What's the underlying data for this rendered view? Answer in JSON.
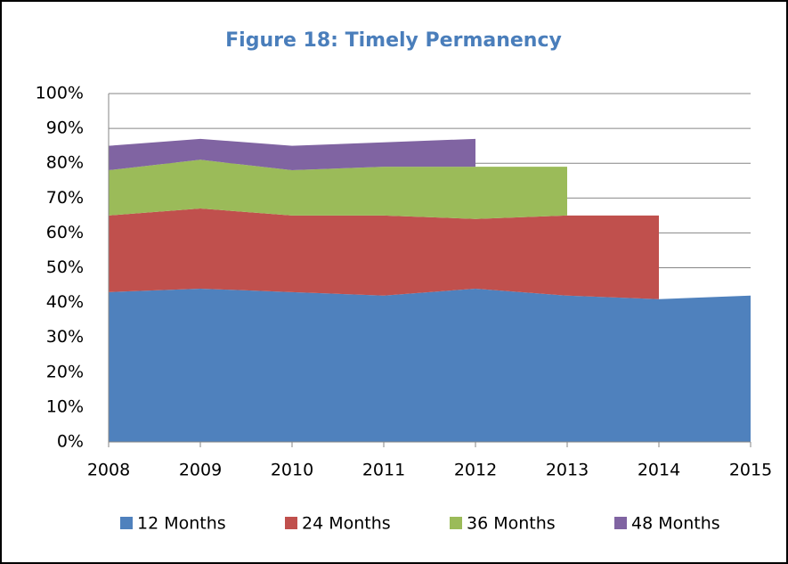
{
  "chart_data": {
    "type": "stacked_area",
    "title": "Figure 18: Timely Permanency",
    "x": [
      2008,
      2009,
      2010,
      2011,
      2012,
      2013,
      2014,
      2015
    ],
    "xlim": [
      2008,
      2015
    ],
    "xticks": [
      2008,
      2009,
      2010,
      2011,
      2012,
      2013,
      2014,
      2015
    ],
    "ylim": [
      0,
      100
    ],
    "yticks": [
      {
        "value": 0,
        "label": "0%"
      },
      {
        "value": 10,
        "label": "10%"
      },
      {
        "value": 20,
        "label": "20%"
      },
      {
        "value": 30,
        "label": "30%"
      },
      {
        "value": 40,
        "label": "40%"
      },
      {
        "value": 50,
        "label": "50%"
      },
      {
        "value": 60,
        "label": "60%"
      },
      {
        "value": 70,
        "label": "70%"
      },
      {
        "value": 80,
        "label": "80%"
      },
      {
        "value": 90,
        "label": "90%"
      },
      {
        "value": 100,
        "label": "100%"
      }
    ],
    "grid": true,
    "legend": "bottom",
    "series": [
      {
        "name": "12 Months",
        "color": "#4f81bd",
        "values": [
          43,
          44,
          43,
          42,
          44,
          42,
          41,
          42
        ]
      },
      {
        "name": "24 Months",
        "color": "#c0504d",
        "values": [
          22,
          23,
          22,
          23,
          20,
          23,
          24,
          null
        ]
      },
      {
        "name": "36 Months",
        "color": "#9bbb59",
        "values": [
          13,
          14,
          13,
          14,
          15,
          14,
          null,
          null
        ]
      },
      {
        "name": "48 Months",
        "color": "#8064a2",
        "values": [
          7,
          6,
          7,
          7,
          8,
          null,
          null,
          null
        ]
      }
    ]
  }
}
